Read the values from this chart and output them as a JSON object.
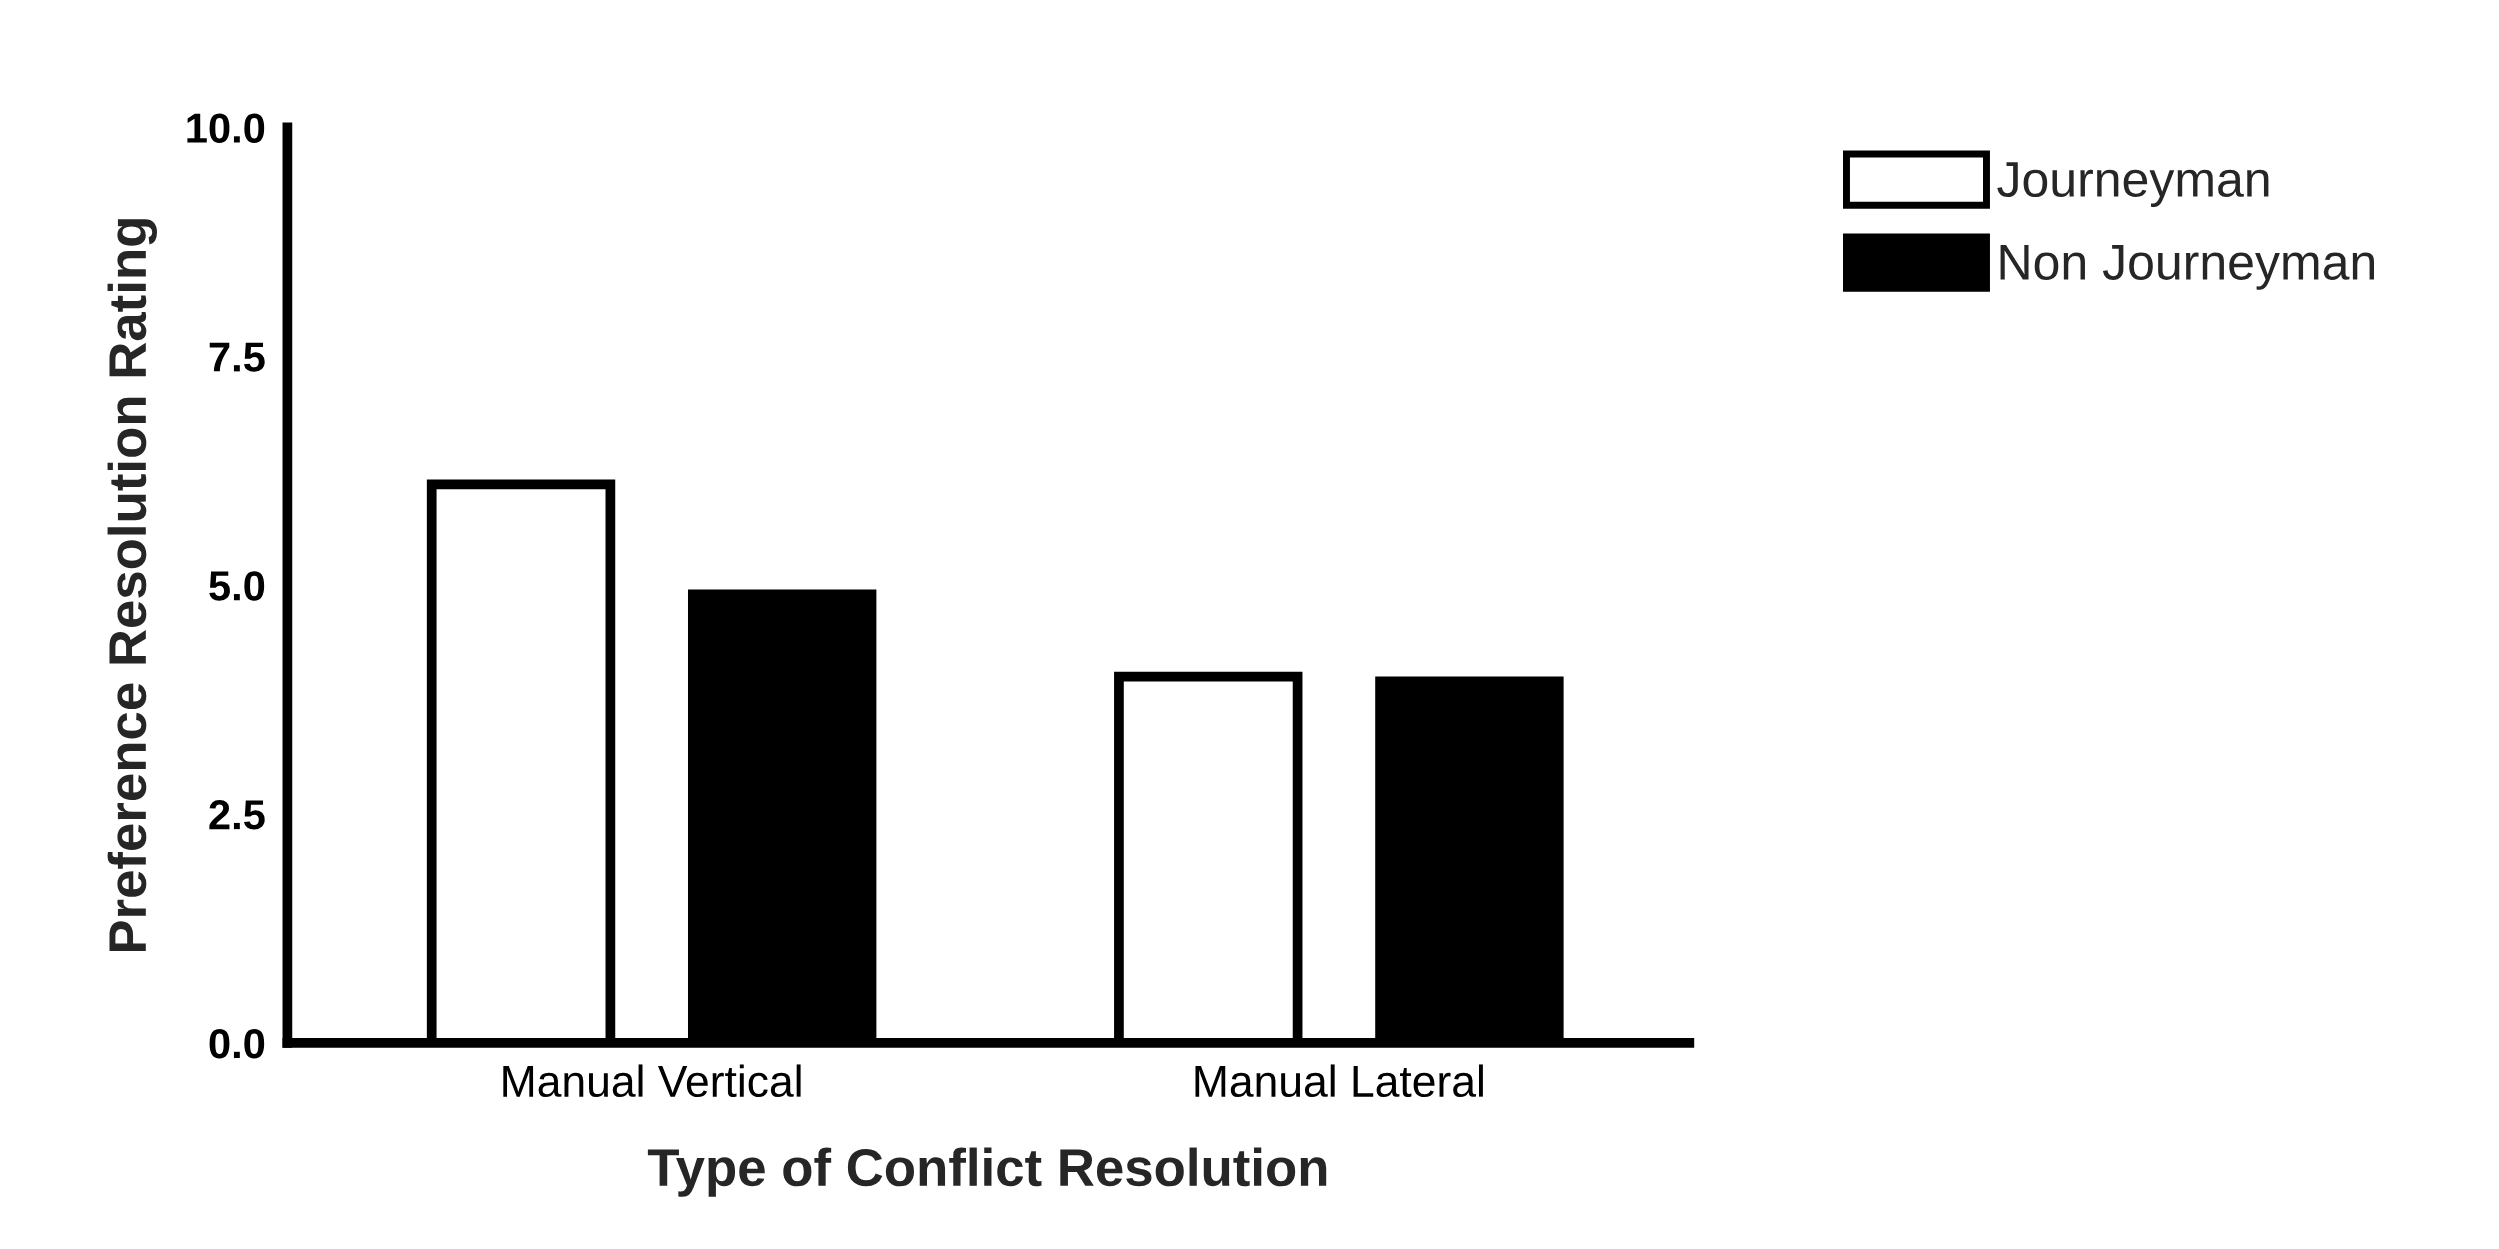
{
  "chart_data": {
    "type": "bar",
    "xlabel": "Type of Conflict Resolution",
    "ylabel": "Preference Resolution Rating",
    "categories": [
      "Manual Vertical",
      "Manual Lateral"
    ],
    "series": [
      {
        "name": "Journeyman",
        "color": "#ffffff",
        "values": [
          6.1,
          4.0
        ]
      },
      {
        "name": "Non Journeyman",
        "color": "#000000",
        "values": [
          4.9,
          3.95
        ]
      }
    ],
    "ylim": [
      0,
      10
    ],
    "yticks": [
      {
        "value": 0,
        "label": "0.0"
      },
      {
        "value": 2.5,
        "label": "2.5"
      },
      {
        "value": 5,
        "label": "5.0"
      },
      {
        "value": 7.5,
        "label": "7.5"
      },
      {
        "value": 10,
        "label": "10.0"
      }
    ],
    "grid": false,
    "legend": "top right"
  }
}
